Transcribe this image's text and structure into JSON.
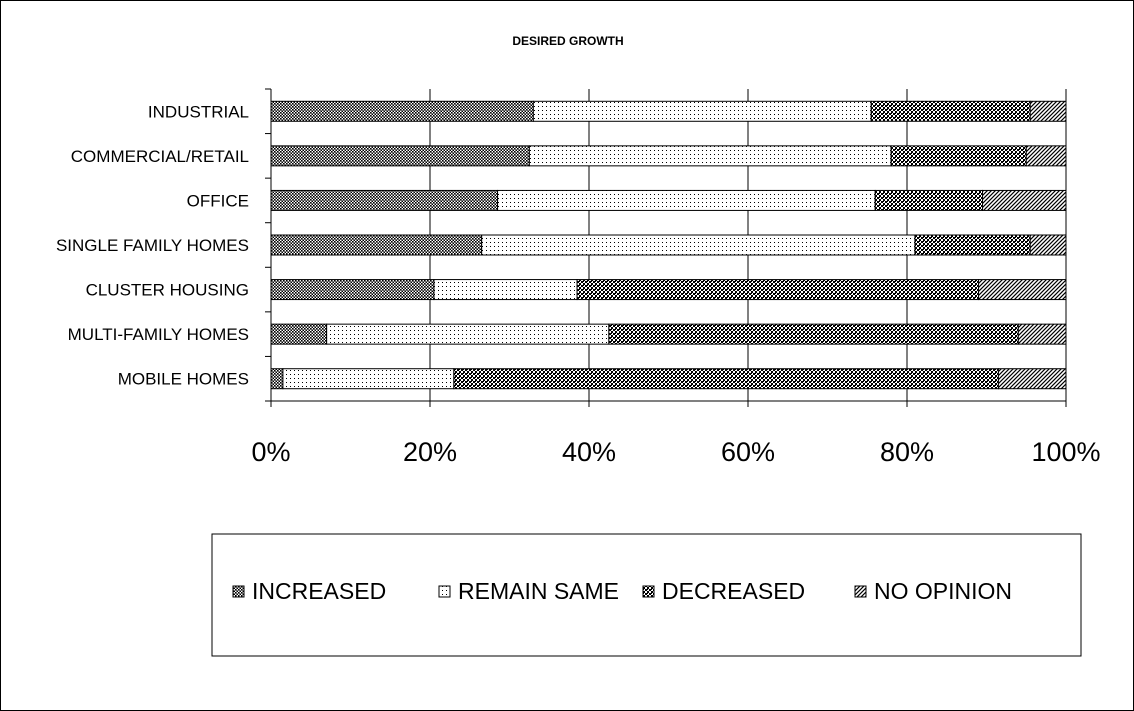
{
  "chart_data": {
    "type": "bar",
    "orientation": "horizontal",
    "stacking": "percent",
    "title": "DESIRED GROWTH",
    "categories": [
      "INDUSTRIAL",
      "COMMERCIAL/RETAIL",
      "OFFICE",
      "SINGLE FAMILY HOMES",
      "CLUSTER HOUSING",
      "MULTI-FAMILY  HOMES",
      "MOBILE HOMES"
    ],
    "series": [
      {
        "name": "INCREASED",
        "pattern": "dense-dots",
        "values": [
          33,
          32.5,
          28.5,
          26.5,
          20.5,
          7,
          1.5
        ]
      },
      {
        "name": "REMAIN SAME",
        "pattern": "sparse-dots",
        "values": [
          42.5,
          45.5,
          47.5,
          54.5,
          18,
          35.5,
          21.5
        ]
      },
      {
        "name": "DECREASED",
        "pattern": "checker",
        "values": [
          20,
          17,
          13.5,
          14.5,
          50.5,
          51.5,
          68.5
        ]
      },
      {
        "name": "NO OPINION",
        "pattern": "diagonal",
        "values": [
          4.5,
          5,
          10.5,
          4.5,
          11,
          6,
          8.5
        ]
      }
    ],
    "xlim": [
      0,
      100
    ],
    "xticks": [
      "0%",
      "20%",
      "40%",
      "60%",
      "80%",
      "100%"
    ],
    "grid": true,
    "legend_position": "bottom",
    "colors": {
      "bar_outline": "#000000",
      "grid": "#000000",
      "background": "#ffffff"
    }
  }
}
